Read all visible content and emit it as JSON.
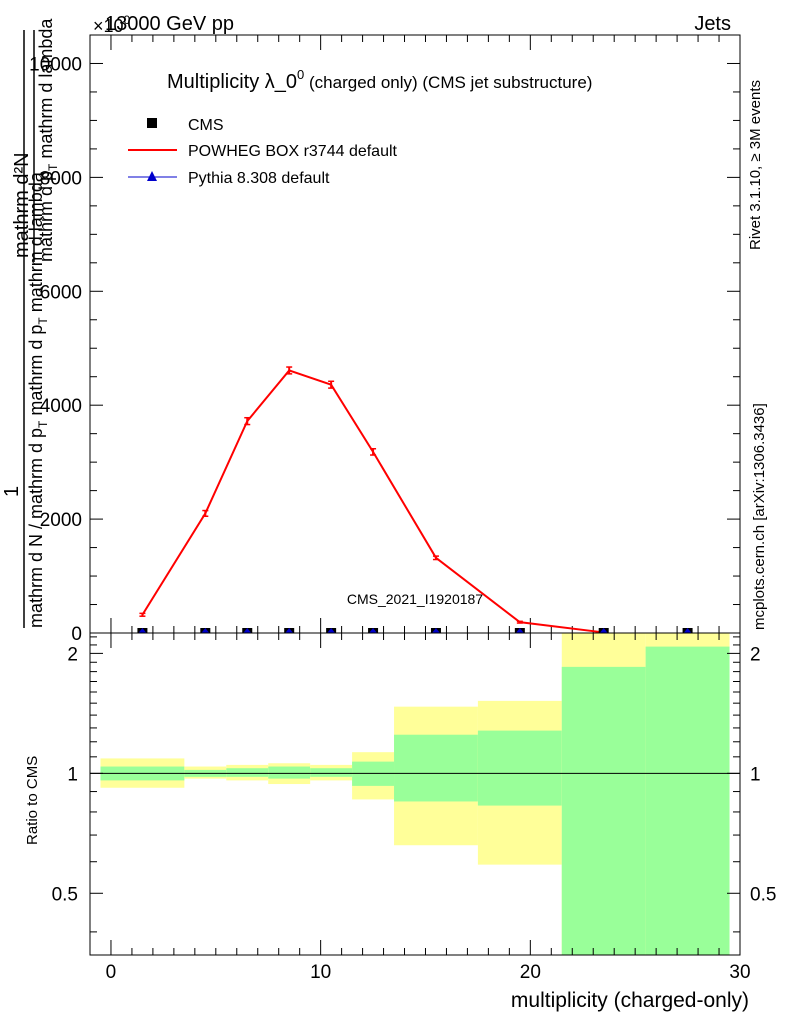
{
  "header": {
    "left": "13000 GeV pp",
    "right": "Jets",
    "exponent": "×10^0"
  },
  "side_text": {
    "rivet": "Rivet 3.1.10, ≥ 3M events",
    "mcplots": "mcplots.cern.ch [arXiv:1306.3436]"
  },
  "chart_data": [
    {
      "type": "line",
      "title_main": "Multiplicity λ_0",
      "title_sup": "0",
      "title_tail": " (charged only) (CMS jet substructure)",
      "ylabel_numerator": "mathrm d²N",
      "ylabel_fraction_1": "1",
      "ylabel_denominator": "mathrm d N / mathrm d p_T mathrm d p_T mathrm d lambda",
      "watermark": "CMS_2021_I1920187",
      "xlim": [
        -1,
        30
      ],
      "ylim": [
        0,
        10500
      ],
      "yticks": [
        0,
        2000,
        4000,
        6000,
        8000,
        10000
      ],
      "ytick_labels": [
        "0",
        "2000",
        "4000",
        "6000",
        "8000",
        "10000"
      ],
      "legend_position": "top-left",
      "legend": [
        {
          "name": "CMS",
          "marker": "square",
          "color": "#000000"
        },
        {
          "name": "POWHEG BOX r3744 default",
          "marker": "line",
          "color": "#ff0000"
        },
        {
          "name": "Pythia 8.308 default",
          "marker": "triangle",
          "color": "#0000cc"
        }
      ],
      "cms_points": {
        "x": [
          1.5,
          4.5,
          6.5,
          8.5,
          10.5,
          12.5,
          15.5,
          19.5,
          23.5,
          27.5
        ],
        "y": [
          0,
          0,
          0,
          0,
          0,
          0,
          0,
          0,
          0,
          0
        ]
      },
      "series": [
        {
          "name": "POWHEG BOX r3744 default",
          "color": "#ff0000",
          "x": [
            1.5,
            4.5,
            6.5,
            8.5,
            10.5,
            12.5,
            15.5,
            19.5,
            23.5
          ],
          "y": [
            320,
            2100,
            3720,
            4610,
            4360,
            3180,
            1320,
            190,
            10
          ],
          "err": [
            25,
            50,
            60,
            60,
            60,
            55,
            30,
            15,
            5
          ]
        }
      ]
    },
    {
      "type": "area",
      "ylabel": "Ratio to CMS",
      "xlabel": "multiplicity (charged-only)",
      "xlim": [
        -1,
        30
      ],
      "ylim": [
        0.35,
        2.25
      ],
      "xticks": [
        0,
        10,
        20,
        30
      ],
      "xtick_labels": [
        "0",
        "10",
        "20",
        "30"
      ],
      "yticks": [
        0.5,
        1,
        2
      ],
      "ytick_labels": [
        "0.5",
        "1",
        "2"
      ],
      "bands": {
        "edges": [
          -0.5,
          3.5,
          5.5,
          7.5,
          9.5,
          11.5,
          13.5,
          17.5,
          21.5,
          25.5,
          29.5
        ],
        "yellow_lo": [
          0.92,
          0.97,
          0.96,
          0.94,
          0.96,
          0.86,
          0.66,
          0.59,
          0.35,
          0.35
        ],
        "yellow_hi": [
          1.09,
          1.04,
          1.05,
          1.06,
          1.05,
          1.13,
          1.47,
          1.52,
          2.25,
          2.25
        ],
        "green_lo": [
          0.96,
          0.98,
          0.98,
          0.97,
          0.98,
          0.93,
          0.85,
          0.83,
          0.35,
          0.35
        ],
        "green_hi": [
          1.04,
          1.02,
          1.03,
          1.04,
          1.03,
          1.07,
          1.25,
          1.28,
          1.85,
          2.08
        ]
      },
      "colors": {
        "yellow": "#ffff99",
        "green": "#99ff99"
      }
    }
  ]
}
